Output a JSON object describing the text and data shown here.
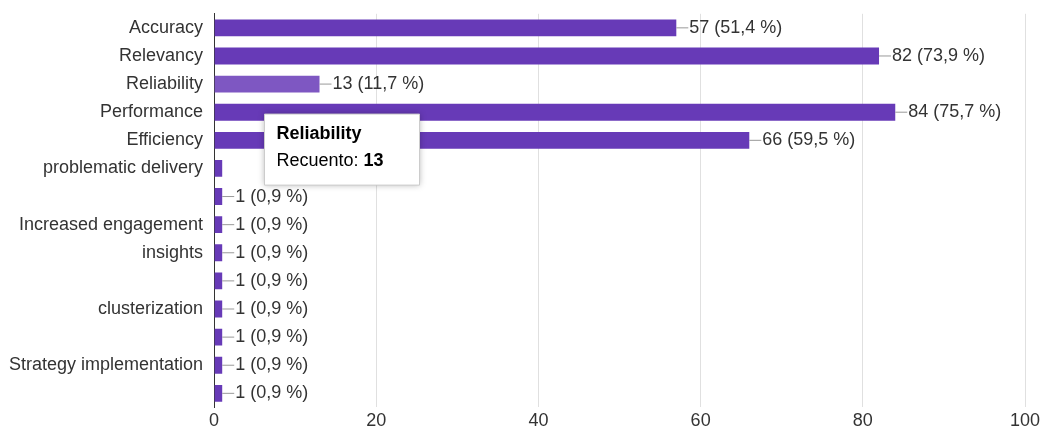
{
  "chart_data": {
    "type": "bar",
    "orientation": "horizontal",
    "categories": [
      "Accuracy",
      "Relevancy",
      "Reliability",
      "Performance",
      "Efficiency",
      "problematic delivery",
      null,
      "Increased engagement",
      "insights",
      null,
      "clusterization",
      null,
      "Strategy implementation",
      null
    ],
    "values": [
      57,
      82,
      13,
      84,
      66,
      1,
      1,
      1,
      1,
      1,
      1,
      1,
      1,
      1
    ],
    "colors": [
      "#673ab7",
      "#673ab7",
      "#7e57c2",
      "#673ab7",
      "#673ab7",
      "#673ab7",
      "#673ab7",
      "#673ab7",
      "#673ab7",
      "#673ab7",
      "#673ab7",
      "#673ab7",
      "#673ab7",
      "#673ab7"
    ],
    "value_labels": [
      "57 (51,4 %)",
      "82 (73,9 %)",
      "13 (11,7 %)",
      "84 (75,7 %)",
      "66 (59,5 %)",
      null,
      "1 (0,9 %)",
      "1 (0,9 %)",
      "1 (0,9 %)",
      "1 (0,9 %)",
      "1 (0,9 %)",
      "1 (0,9 %)",
      "1 (0,9 %)",
      "1 (0,9 %)"
    ],
    "xlim": [
      0,
      100
    ],
    "xticks": [
      0,
      20,
      40,
      60,
      80,
      100
    ],
    "grid": "x",
    "annotations": [
      {
        "text": "Reliability\nRecuento: 13",
        "x": 13,
        "y": "Reliability"
      }
    ]
  }
}
